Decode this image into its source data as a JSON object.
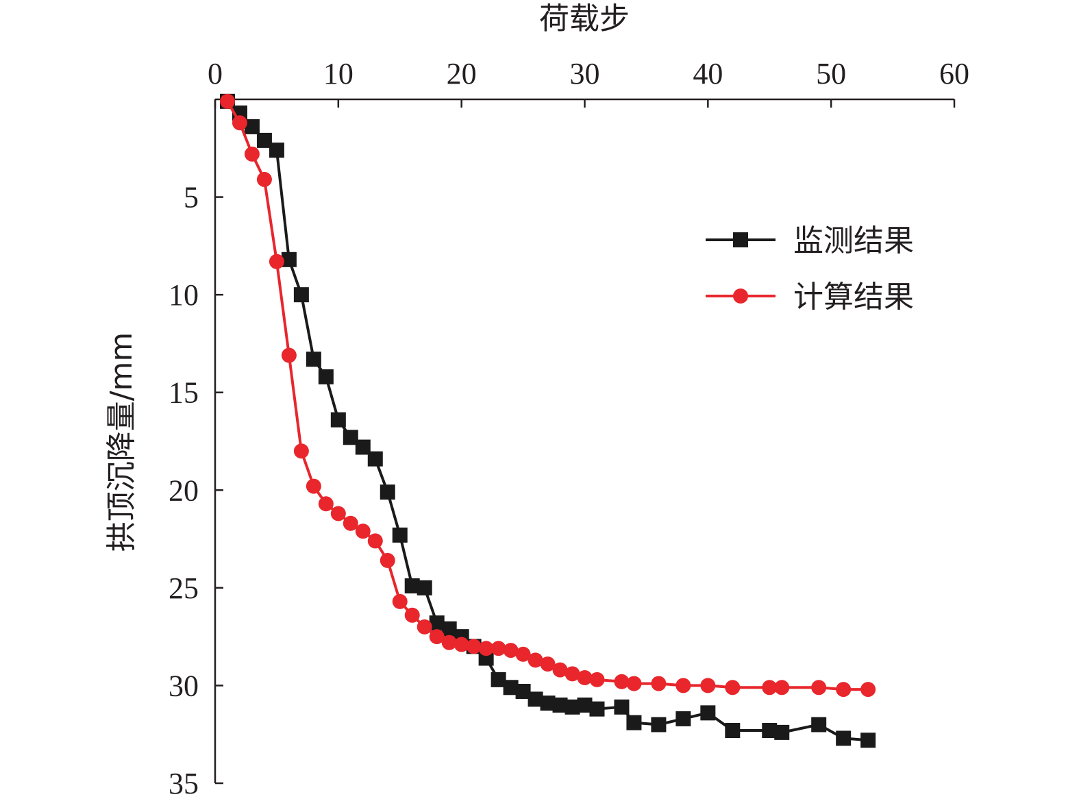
{
  "chart_data": {
    "type": "line",
    "xlabel": "荷载步",
    "ylabel": "拱顶沉降量/mm",
    "xlim": [
      0,
      60
    ],
    "ylim": [
      0,
      35
    ],
    "y_inverted": true,
    "x_axis_position": "top",
    "x_ticks": [
      "0",
      "10",
      "20",
      "30",
      "40",
      "50",
      "60"
    ],
    "y_ticks": [
      "5",
      "10",
      "15",
      "20",
      "25",
      "30",
      "35"
    ],
    "grid": false,
    "legend_position": "top-right",
    "series": [
      {
        "name": "监测结果",
        "color": "#1a1a1a",
        "marker": "square",
        "x": [
          1,
          2,
          3,
          4,
          5,
          6,
          7,
          8,
          9,
          10,
          11,
          12,
          13,
          14,
          15,
          16,
          17,
          18,
          19,
          20,
          21,
          22,
          23,
          24,
          25,
          26,
          27,
          28,
          29,
          30,
          31,
          33,
          34,
          36,
          38,
          40,
          42,
          45,
          46,
          49,
          51,
          53
        ],
        "y": [
          0.1,
          0.7,
          1.4,
          2.1,
          2.6,
          8.2,
          10.0,
          13.3,
          14.2,
          16.4,
          17.3,
          17.8,
          18.4,
          20.1,
          22.3,
          24.9,
          25.0,
          26.8,
          27.1,
          27.5,
          28.0,
          28.6,
          29.7,
          30.1,
          30.3,
          30.7,
          30.9,
          31.0,
          31.1,
          31.0,
          31.2,
          31.1,
          31.9,
          32.0,
          31.7,
          31.4,
          32.3,
          32.3,
          32.4,
          32.0,
          32.7,
          32.8
        ]
      },
      {
        "name": "计算结果",
        "color": "#e8262c",
        "marker": "circle",
        "x": [
          1,
          2,
          3,
          4,
          5,
          6,
          7,
          8,
          9,
          10,
          11,
          12,
          13,
          14,
          15,
          16,
          17,
          18,
          19,
          20,
          21,
          22,
          23,
          24,
          25,
          26,
          27,
          28,
          29,
          30,
          31,
          33,
          34,
          36,
          38,
          40,
          42,
          45,
          46,
          49,
          51,
          53
        ],
        "y": [
          0.1,
          1.2,
          2.8,
          4.1,
          8.3,
          13.1,
          18.0,
          19.8,
          20.7,
          21.2,
          21.7,
          22.1,
          22.6,
          23.6,
          25.7,
          26.4,
          27.0,
          27.5,
          27.8,
          27.9,
          28.0,
          28.1,
          28.1,
          28.2,
          28.4,
          28.7,
          28.9,
          29.2,
          29.4,
          29.6,
          29.7,
          29.8,
          29.9,
          29.9,
          30.0,
          30.0,
          30.1,
          30.1,
          30.1,
          30.1,
          30.2,
          30.2
        ]
      }
    ]
  }
}
